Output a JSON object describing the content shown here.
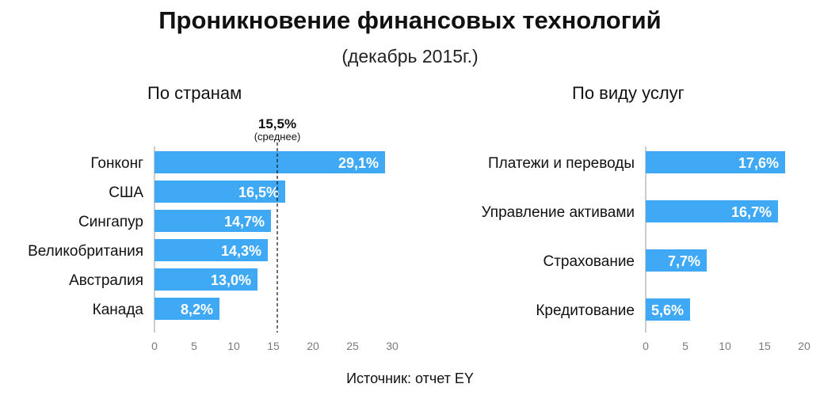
{
  "header": {
    "title": "Проникновение финансовых технологий",
    "subtitle": "(декабрь 2015г.)"
  },
  "footer": {
    "source": "Источник: отчет EY"
  },
  "colors": {
    "bar": "#3fa9f5",
    "axis": "#9a9a9a",
    "label_inside": "#ffffff"
  },
  "chart_data": [
    {
      "type": "bar",
      "orientation": "horizontal",
      "title": "По странам",
      "categories": [
        "Гонконг",
        "США",
        "Сингапур",
        "Великобритания",
        "Австралия",
        "Канада"
      ],
      "values": [
        29.1,
        16.5,
        14.7,
        14.3,
        13.0,
        8.2
      ],
      "value_labels": [
        "29,1%",
        "16,5%",
        "14,7%",
        "14,3%",
        "13,0%",
        "8,2%"
      ],
      "xlim": [
        0,
        30
      ],
      "xticks": [
        0,
        5,
        10,
        15,
        20,
        25,
        30
      ],
      "grid": false,
      "reference_line": {
        "value": 15.5,
        "label": "15,5%",
        "sublabel": "(среднее)"
      }
    },
    {
      "type": "bar",
      "orientation": "horizontal",
      "title": "По виду услуг",
      "categories": [
        "Платежи и переводы",
        "Управление активами",
        "Страхование",
        "Кредитование"
      ],
      "values": [
        17.6,
        16.7,
        7.7,
        5.6
      ],
      "value_labels": [
        "17,6%",
        "16,7%",
        "7,7%",
        "5,6%"
      ],
      "xlim": [
        0,
        20
      ],
      "xticks": [
        0,
        5,
        10,
        15,
        20
      ],
      "grid": false
    }
  ]
}
